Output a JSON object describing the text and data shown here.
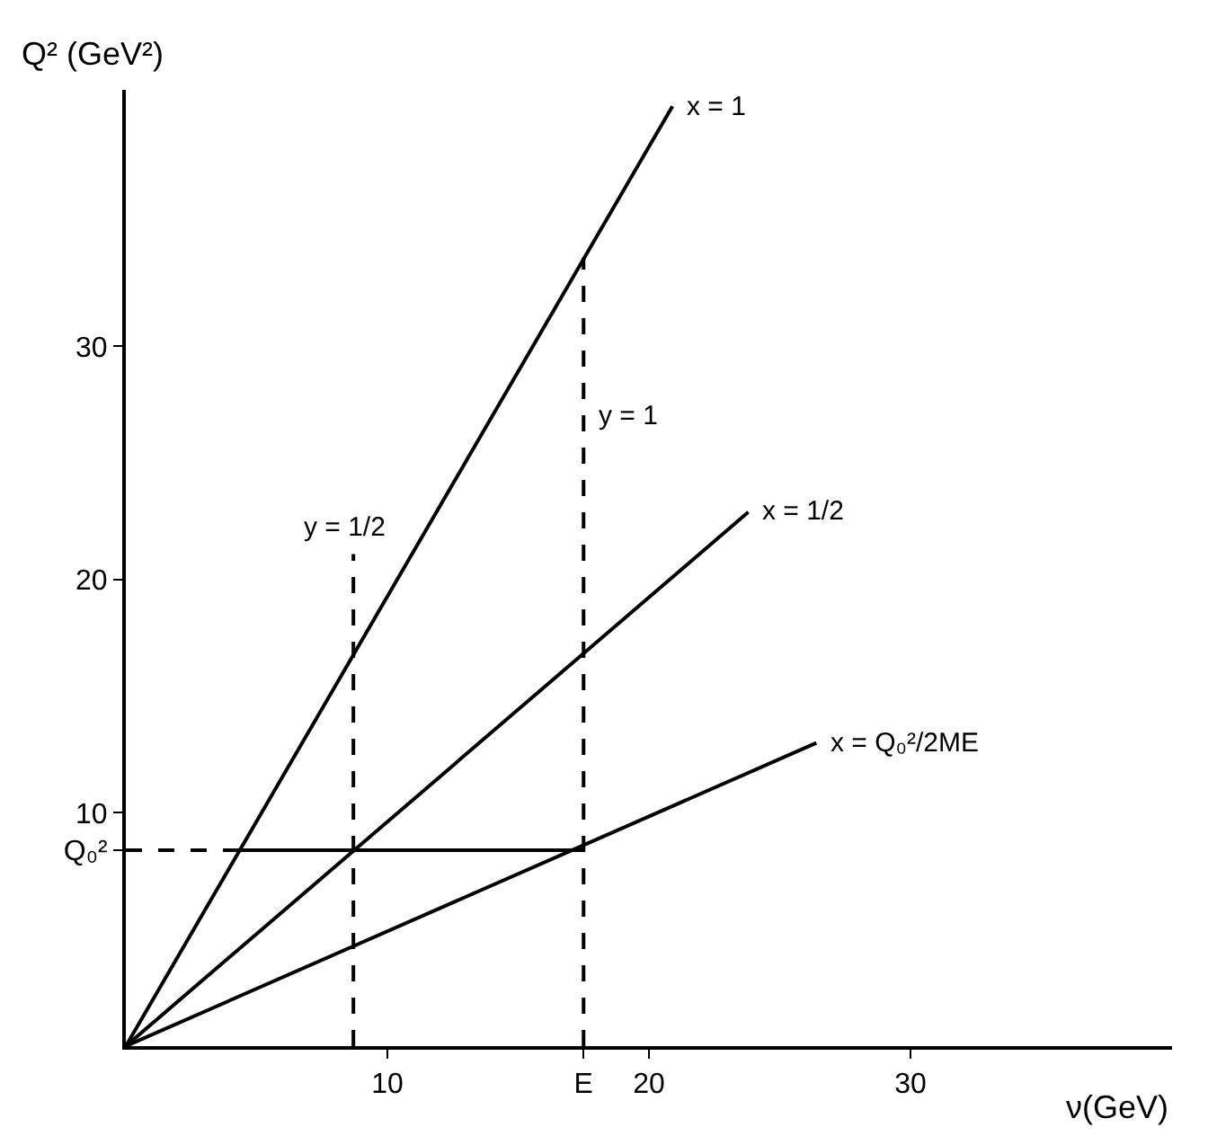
{
  "chart_data": {
    "type": "line",
    "xlabel": "ν(GeV)",
    "ylabel": "Q² (GeV²)",
    "xlim": [
      0,
      40
    ],
    "ylim": [
      0,
      41
    ],
    "xticks": [
      {
        "value": 10,
        "label": "10"
      },
      {
        "value": 17.5,
        "label": "E"
      },
      20,
      30
    ],
    "yticks": [
      {
        "value": 8.4,
        "label": "Q₀²"
      },
      10,
      20,
      30
    ],
    "series": [
      {
        "color": "#000000",
        "x": [
          0,
          20.9
        ],
        "values": [
          0,
          40.3
        ]
      },
      {
        "color": "#000000",
        "x": [
          0,
          23.8
        ],
        "values": [
          0,
          22.9
        ]
      },
      {
        "color": "#000000",
        "x": [
          0,
          26.4
        ],
        "values": [
          0,
          13.0
        ]
      },
      {
        "color": "#000000",
        "x": [
          4.35,
          17.5
        ],
        "values": [
          8.4,
          8.4
        ]
      },
      {
        "color": "#000000",
        "line_style": "dashed",
        "x": [
          0,
          4.35
        ],
        "values": [
          8.4,
          8.4
        ]
      },
      {
        "color": "#000000",
        "line_style": "dashed",
        "x": [
          17.5,
          17.5
        ],
        "values": [
          0,
          33.8
        ]
      },
      {
        "color": "#000000",
        "line_style": "dashed",
        "x": [
          8.7,
          8.7
        ],
        "values": [
          0,
          21.1
        ]
      }
    ],
    "annotations": [
      {
        "text": "x = 1",
        "x": 20.9,
        "y": 40.3
      },
      {
        "text": "x = 1/2",
        "x": 23.8,
        "y": 22.9
      },
      {
        "text": "x = Q₀²/2ME",
        "x": 26.4,
        "y": 13.0
      },
      {
        "text": "y = 1",
        "x": 17.5,
        "y": 27
      },
      {
        "text": "y = 1/2",
        "x": 8.7,
        "y": 21.1
      }
    ]
  }
}
